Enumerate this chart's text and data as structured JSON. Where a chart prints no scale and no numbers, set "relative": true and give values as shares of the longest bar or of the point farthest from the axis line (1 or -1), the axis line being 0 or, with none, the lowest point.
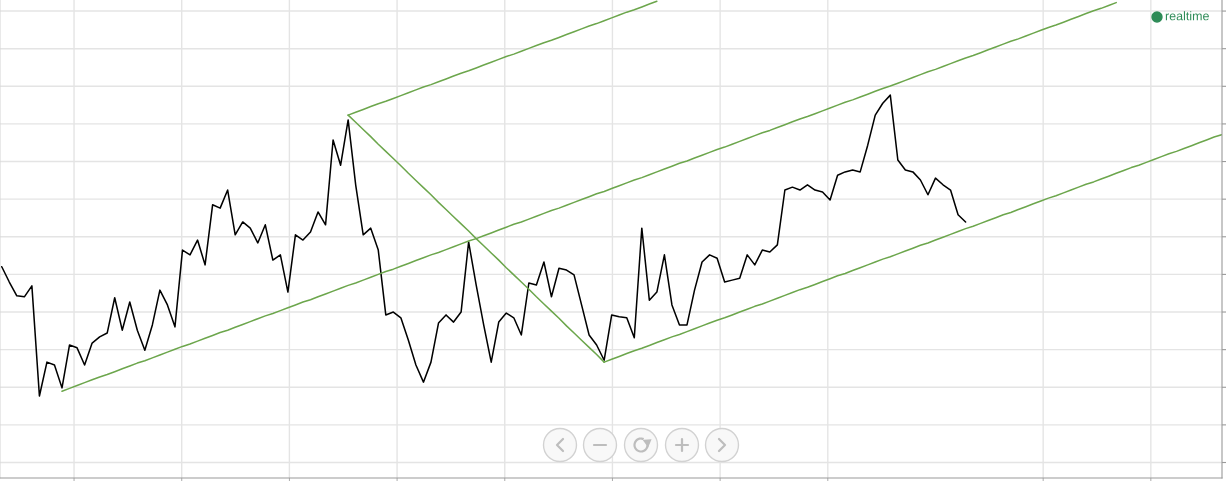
{
  "chart_data": {
    "type": "line",
    "relative": true,
    "grid": true,
    "categories": [
      null,
      null,
      null,
      null,
      null,
      null,
      null,
      null,
      null,
      null,
      null,
      null,
      null,
      null,
      null,
      null,
      null,
      null,
      null,
      null,
      null,
      null,
      null,
      null,
      null,
      null,
      null,
      null,
      null,
      null,
      null,
      null,
      null,
      null,
      null,
      null,
      null,
      null,
      null,
      null,
      null,
      null,
      null,
      null,
      null,
      null,
      null,
      null,
      null,
      null,
      null,
      null,
      null,
      null,
      null,
      null,
      null,
      null,
      null,
      null,
      null,
      null,
      null,
      null,
      null,
      null,
      null,
      null,
      null,
      null,
      null,
      null,
      null,
      null,
      null,
      null,
      null,
      null,
      null,
      null,
      null,
      null,
      null,
      null,
      null,
      null,
      null,
      null,
      null,
      null,
      null,
      null,
      null,
      null,
      null,
      null,
      null,
      null,
      null,
      null,
      null,
      null,
      null,
      null,
      null,
      null,
      null,
      null,
      null,
      null,
      null,
      null,
      null,
      null,
      null,
      null,
      null,
      null,
      null,
      null,
      null,
      null,
      null,
      null,
      null,
      null,
      null,
      null,
      null,
      null,
      null,
      null,
      null,
      null,
      null,
      null,
      null,
      null,
      null,
      null,
      null,
      null,
      null,
      null,
      null,
      null,
      null,
      null,
      null,
      null,
      null,
      null,
      null,
      null,
      null,
      null,
      null,
      null,
      null,
      null,
      null,
      null,
      null
    ],
    "series": [
      {
        "color": "#000000",
        "values": [
          0.443,
          0.411,
          0.382,
          0.38,
          0.403,
          0.172,
          0.243,
          0.237,
          0.189,
          0.279,
          0.273,
          0.237,
          0.283,
          0.296,
          0.304,
          0.378,
          0.31,
          0.369,
          0.31,
          0.268,
          0.321,
          0.394,
          0.363,
          0.317,
          0.478,
          0.468,
          0.499,
          0.447,
          0.573,
          0.566,
          0.604,
          0.51,
          0.537,
          0.524,
          0.493,
          0.531,
          0.457,
          0.468,
          0.39,
          0.51,
          0.499,
          0.516,
          0.558,
          0.531,
          0.709,
          0.656,
          0.751,
          0.615,
          0.51,
          0.524,
          0.478,
          0.342,
          0.348,
          0.336,
          0.289,
          0.237,
          0.201,
          0.243,
          0.325,
          0.342,
          0.327,
          0.348,
          0.495,
          0.405,
          0.321,
          0.243,
          0.327,
          0.346,
          0.336,
          0.3,
          0.409,
          0.405,
          0.453,
          0.38,
          0.44,
          0.436,
          0.426,
          0.363,
          0.3,
          0.279,
          0.247,
          0.342,
          0.338,
          0.336,
          0.294,
          0.524,
          0.373,
          0.39,
          0.468,
          0.363,
          0.321,
          0.321,
          0.394,
          0.453,
          0.468,
          0.461,
          0.411,
          0.415,
          0.419,
          0.468,
          0.447,
          0.478,
          0.474,
          0.489,
          0.604,
          0.61,
          0.604,
          0.615,
          0.604,
          0.6,
          0.583,
          0.635,
          0.642,
          0.646,
          0.642,
          0.698,
          0.761,
          0.786,
          0.803,
          0.667,
          0.646,
          0.642,
          0.625,
          0.594,
          0.629,
          0.615,
          0.604,
          0.552,
          0.537,
          null,
          null,
          null,
          null,
          null,
          null,
          null,
          null,
          null,
          null,
          null,
          null,
          null,
          null,
          null,
          null,
          null,
          null,
          null,
          null,
          null,
          null,
          null,
          null,
          null,
          null,
          null,
          null,
          null,
          null,
          null,
          null,
          null,
          null
        ]
      },
      {
        "color": "#6ca64c",
        "values": [
          null,
          null,
          null,
          null,
          null,
          null,
          null,
          null,
          0.182,
          0.188,
          0.194,
          0.2,
          0.206,
          0.212,
          0.217,
          0.223,
          0.229,
          0.235,
          0.241,
          0.246,
          0.252,
          0.258,
          0.264,
          0.27,
          0.276,
          0.281,
          0.287,
          0.293,
          0.299,
          0.305,
          0.31,
          0.316,
          0.322,
          0.328,
          0.334,
          0.34,
          0.345,
          0.351,
          0.357,
          0.363,
          0.369,
          0.374,
          0.38,
          0.386,
          0.392,
          0.398,
          0.404,
          0.409,
          0.415,
          0.421,
          0.427,
          0.433,
          0.438,
          0.444,
          0.45,
          0.456,
          0.462,
          0.468,
          0.473,
          0.479,
          0.485,
          0.491,
          0.497,
          0.502,
          0.508,
          0.514,
          0.52,
          0.526,
          0.532,
          0.537,
          0.543,
          0.549,
          0.555,
          0.561,
          0.566,
          0.572,
          0.578,
          0.584,
          0.59,
          0.596,
          0.601,
          0.607,
          0.613,
          0.619,
          0.625,
          0.63,
          0.636,
          0.642,
          0.648,
          0.654,
          0.66,
          0.665,
          0.671,
          0.677,
          0.683,
          0.689,
          0.694,
          0.7,
          0.706,
          0.712,
          0.718,
          0.724,
          0.729,
          0.735,
          0.741,
          0.747,
          0.753,
          0.758,
          0.764,
          0.77,
          0.776,
          0.782,
          0.788,
          0.793,
          0.799,
          0.805,
          0.811,
          0.817,
          0.822,
          0.828,
          0.834,
          0.84,
          0.846,
          0.852,
          0.857,
          0.863,
          0.869,
          0.875,
          0.881,
          0.886,
          0.892,
          0.898,
          0.904,
          0.91,
          0.916,
          0.921,
          0.927,
          0.933,
          0.939,
          0.945,
          0.95,
          0.956,
          0.962,
          0.968,
          0.974,
          0.98,
          0.985,
          0.991,
          0.997,
          null,
          null,
          null,
          null,
          null,
          null,
          null,
          null,
          null,
          null,
          null,
          null,
          null,
          null
        ]
      },
      {
        "color": "#6ca64c",
        "values": [
          null,
          null,
          null,
          null,
          null,
          null,
          null,
          null,
          null,
          null,
          null,
          null,
          null,
          null,
          null,
          null,
          null,
          null,
          null,
          null,
          null,
          null,
          null,
          null,
          null,
          null,
          null,
          null,
          null,
          null,
          null,
          null,
          null,
          null,
          null,
          null,
          null,
          null,
          null,
          null,
          null,
          null,
          null,
          null,
          null,
          null,
          0.761,
          0.767,
          0.773,
          0.779,
          0.785,
          0.79,
          0.796,
          0.802,
          0.808,
          0.814,
          0.82,
          0.825,
          0.831,
          0.837,
          0.843,
          0.849,
          0.854,
          0.86,
          0.866,
          0.872,
          0.878,
          0.884,
          0.889,
          0.895,
          0.901,
          0.907,
          0.913,
          0.918,
          0.924,
          0.93,
          0.936,
          0.942,
          0.948,
          0.953,
          0.959,
          0.965,
          0.971,
          0.977,
          0.982,
          0.988,
          0.994,
          1.0,
          null,
          null,
          null,
          null,
          null,
          null,
          null,
          null,
          null,
          null,
          null,
          null,
          null,
          null,
          null,
          null,
          null,
          null,
          null,
          null,
          null,
          null,
          null,
          null,
          null,
          null,
          null,
          null,
          null,
          null,
          null,
          null,
          null,
          null,
          null,
          null,
          null,
          null,
          null,
          null,
          null,
          null,
          null,
          null,
          null,
          null,
          null,
          null,
          null,
          null,
          null,
          null,
          null,
          null,
          null,
          null,
          null,
          null,
          null,
          null,
          null,
          null,
          null,
          null,
          null,
          null,
          null,
          null,
          null,
          null,
          null,
          null,
          null,
          null,
          null
        ]
      },
      {
        "color": "#6ca64c",
        "values": [
          null,
          null,
          null,
          null,
          null,
          null,
          null,
          null,
          null,
          null,
          null,
          null,
          null,
          null,
          null,
          null,
          null,
          null,
          null,
          null,
          null,
          null,
          null,
          null,
          null,
          null,
          null,
          null,
          null,
          null,
          null,
          null,
          null,
          null,
          null,
          null,
          null,
          null,
          null,
          null,
          null,
          null,
          null,
          null,
          null,
          null,
          0.761,
          0.746,
          0.731,
          0.716,
          0.7,
          0.685,
          0.67,
          0.655,
          0.639,
          0.624,
          0.609,
          0.594,
          0.578,
          0.563,
          0.548,
          0.533,
          0.518,
          0.502,
          0.487,
          0.472,
          0.457,
          0.441,
          0.426,
          0.411,
          0.396,
          0.38,
          0.365,
          0.35,
          0.335,
          0.319,
          0.304,
          0.289,
          0.274,
          0.259,
          0.243,
          null,
          null,
          null,
          null,
          null,
          null,
          null,
          null,
          null,
          null,
          null,
          null,
          null,
          null,
          null,
          null,
          null,
          null,
          null,
          null,
          null,
          null,
          null,
          null,
          null,
          null,
          null,
          null,
          null,
          null,
          null,
          null,
          null,
          null,
          null,
          null,
          null,
          null,
          null,
          null,
          null,
          null,
          null,
          null,
          null,
          null,
          null,
          null,
          null,
          null,
          null,
          null,
          null,
          null,
          null,
          null,
          null,
          null,
          null,
          null,
          null,
          null,
          null,
          null,
          null,
          null,
          null,
          null,
          null,
          null,
          null,
          null,
          null,
          null,
          null,
          null,
          null,
          null,
          null,
          null,
          null,
          null
        ]
      },
      {
        "color": "#6ca64c",
        "values": [
          null,
          null,
          null,
          null,
          null,
          null,
          null,
          null,
          null,
          null,
          null,
          null,
          null,
          null,
          null,
          null,
          null,
          null,
          null,
          null,
          null,
          null,
          null,
          null,
          null,
          null,
          null,
          null,
          null,
          null,
          null,
          null,
          null,
          null,
          null,
          null,
          null,
          null,
          null,
          null,
          null,
          null,
          null,
          null,
          null,
          null,
          null,
          null,
          null,
          null,
          null,
          null,
          null,
          null,
          null,
          null,
          null,
          null,
          null,
          null,
          null,
          null,
          null,
          null,
          null,
          null,
          null,
          null,
          null,
          null,
          null,
          null,
          null,
          null,
          null,
          null,
          null,
          null,
          null,
          null,
          0.243,
          0.249,
          0.255,
          0.261,
          0.267,
          0.272,
          0.278,
          0.284,
          0.29,
          0.296,
          0.301,
          0.307,
          0.313,
          0.319,
          0.325,
          0.331,
          0.336,
          0.342,
          0.348,
          0.354,
          0.36,
          0.365,
          0.371,
          0.377,
          0.383,
          0.389,
          0.395,
          0.4,
          0.406,
          0.412,
          0.418,
          0.424,
          0.429,
          0.435,
          0.441,
          0.447,
          0.453,
          0.459,
          0.464,
          0.47,
          0.476,
          0.482,
          0.488,
          0.493,
          0.499,
          0.505,
          0.511,
          0.517,
          0.523,
          0.528,
          0.534,
          0.54,
          0.546,
          0.552,
          0.557,
          0.563,
          0.569,
          0.575,
          0.581,
          0.587,
          0.592,
          0.598,
          0.604,
          0.61,
          0.616,
          0.621,
          0.627,
          0.633,
          0.639,
          0.645,
          0.651,
          0.656,
          0.662,
          0.668,
          0.674,
          0.68,
          0.685,
          0.691,
          0.697,
          0.703,
          0.709,
          0.715,
          0.72
        ]
      }
    ],
    "annotations": [
      "realtime"
    ]
  }
}
